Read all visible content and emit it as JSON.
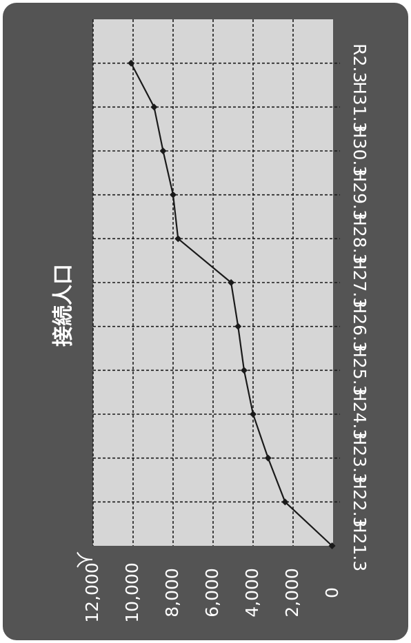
{
  "colors": {
    "frame_background": "#545454",
    "plot_background": "#d6d6d6",
    "grid_line": "#1a1a1a",
    "series_line": "#1a1a1a",
    "text": "#ffffff"
  },
  "chart_data": {
    "type": "line",
    "title": "接続人口",
    "ylabel_unit": "人",
    "categories": [
      "H21.3",
      "H22.3",
      "H23.3",
      "H24.3",
      "H25.3",
      "H26.3",
      "H27.3",
      "H28.3",
      "H29.3",
      "H30.3",
      "H31.3",
      "R2.3"
    ],
    "series": [
      {
        "values": [
          50,
          2400,
          3250,
          4000,
          4450,
          4750,
          5100,
          7750,
          8000,
          8500,
          8950,
          10100
        ]
      }
    ],
    "ylim": [
      0,
      12000
    ],
    "yticks": [
      0,
      2000,
      4000,
      6000,
      8000,
      10000,
      12000
    ],
    "ytick_labels": [
      "0",
      "2,000",
      "4,000",
      "6,000",
      "8,000",
      "10,000",
      "12,000"
    ],
    "grid": true,
    "orientation": "rotated 90 degrees clockwise"
  }
}
